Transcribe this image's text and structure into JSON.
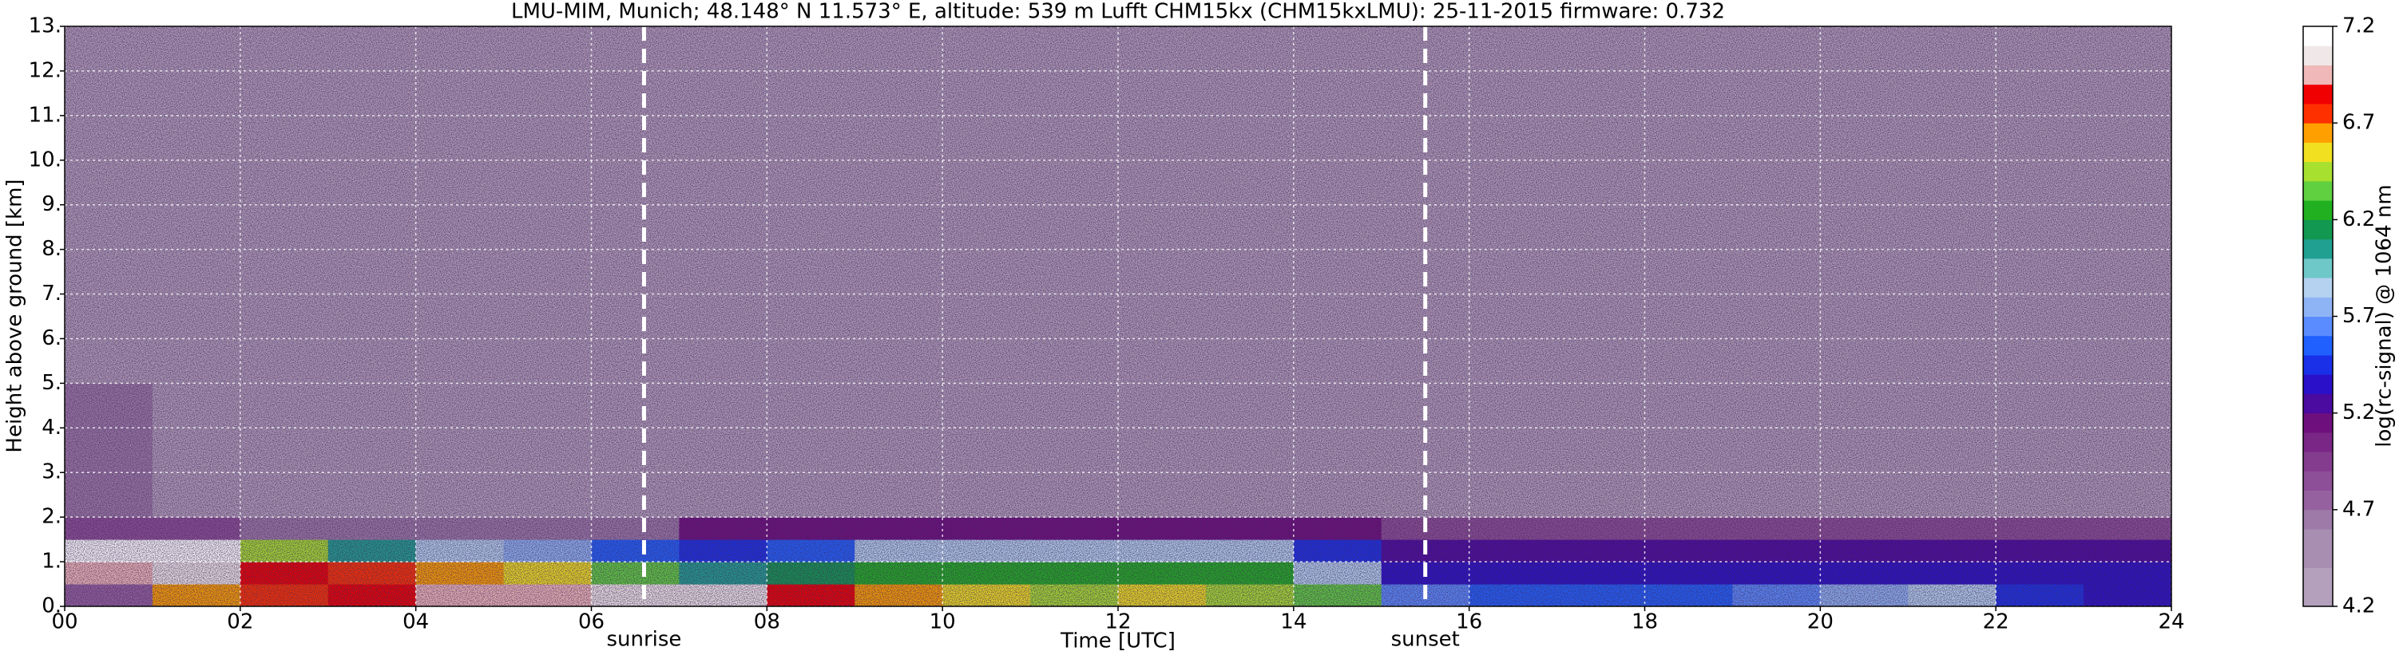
{
  "chart_data": {
    "type": "heatmap",
    "title": "LMU-MIM, Munich; 48.148° N 11.573° E, altitude: 539 m    Lufft CHM15kx (CHM15kxLMU): 25-11-2015    firmware: 0.732",
    "x_label": "Time [UTC]",
    "y_label": "Height above ground [km]",
    "colorbar_label": "log(rc-signal) @ 1064 nm",
    "x": [
      0,
      1,
      2,
      3,
      4,
      5,
      6,
      7,
      8,
      9,
      10,
      11,
      12,
      13,
      14,
      15,
      16,
      17,
      18,
      19,
      20,
      21,
      22,
      23,
      24
    ],
    "y_bins": [
      0,
      0.5,
      1,
      1.5,
      2,
      5,
      13
    ],
    "values": [
      [
        4.7,
        6.6,
        6.7,
        6.8,
        6.9,
        6.9,
        7.0,
        7.0,
        6.8,
        6.6,
        6.5,
        6.4,
        6.5,
        6.4,
        6.3,
        5.6,
        5.5,
        5.5,
        5.5,
        5.6,
        5.7,
        5.8,
        5.4,
        5.3
      ],
      [
        6.9,
        7.0,
        6.8,
        6.7,
        6.6,
        6.5,
        6.3,
        6.0,
        6.1,
        6.2,
        6.2,
        6.2,
        6.2,
        6.2,
        5.8,
        5.3,
        5.3,
        5.3,
        5.3,
        5.3,
        5.3,
        5.3,
        5.3,
        5.3
      ],
      [
        7.1,
        7.1,
        6.4,
        6.0,
        5.8,
        5.7,
        5.5,
        5.4,
        5.5,
        5.8,
        5.8,
        5.8,
        5.8,
        5.8,
        5.4,
        5.2,
        5.2,
        5.2,
        5.2,
        5.2,
        5.2,
        5.2,
        5.2,
        5.2
      ],
      [
        4.8,
        4.8,
        4.6,
        4.6,
        4.6,
        4.6,
        4.6,
        5.1,
        5.1,
        5.1,
        5.1,
        5.1,
        5.1,
        5.1,
        5.1,
        4.8,
        4.8,
        4.8,
        4.8,
        4.8,
        4.8,
        4.8,
        4.8,
        4.8
      ],
      [
        4.6,
        4.3,
        4.3,
        4.3,
        4.3,
        4.3,
        4.3,
        4.3,
        4.3,
        4.3,
        4.3,
        4.3,
        4.3,
        4.3,
        4.3,
        4.3,
        4.3,
        4.3,
        4.3,
        4.3,
        4.3,
        4.3,
        4.3,
        4.3
      ],
      [
        4.2,
        4.2,
        4.2,
        4.2,
        4.2,
        4.2,
        4.2,
        4.2,
        4.2,
        4.2,
        4.2,
        4.2,
        4.2,
        4.2,
        4.2,
        4.2,
        4.2,
        4.2,
        4.2,
        4.2,
        4.2,
        4.2,
        4.2,
        4.2
      ]
    ],
    "xlim": [
      0,
      24
    ],
    "ylim": [
      0,
      13
    ],
    "xticks": [
      {
        "value": 0,
        "label": "00"
      },
      {
        "value": 2,
        "label": "02"
      },
      {
        "value": 4,
        "label": "04"
      },
      {
        "value": 6,
        "label": "06"
      },
      {
        "value": 8,
        "label": "08"
      },
      10,
      12,
      14,
      16,
      18,
      20,
      22,
      24
    ],
    "yticks": [
      {
        "value": 0,
        "label": "0."
      },
      {
        "value": 1,
        "label": "1."
      },
      {
        "value": 2,
        "label": "2."
      },
      {
        "value": 3,
        "label": "3."
      },
      {
        "value": 4,
        "label": "4."
      },
      {
        "value": 5,
        "label": "5."
      },
      {
        "value": 6,
        "label": "6."
      },
      {
        "value": 7,
        "label": "7."
      },
      {
        "value": 8,
        "label": "8."
      },
      {
        "value": 9,
        "label": "9."
      },
      {
        "value": 10,
        "label": "10."
      },
      {
        "value": 11,
        "label": "11."
      },
      {
        "value": 12,
        "label": "12."
      },
      {
        "value": 13,
        "label": "13."
      }
    ],
    "clim": [
      4.2,
      7.2
    ],
    "cticks": [
      4.2,
      4.7,
      5.2,
      5.7,
      6.2,
      6.7,
      7.2
    ],
    "colors": [
      "#b4a0bc",
      "#b4a0bc",
      "#a88fb2",
      "#a88fb2",
      "#9d7aa8",
      "#95629f",
      "#8d4f97",
      "#843d8e",
      "#7a2686",
      "#6e0f7e",
      "#4b0aa0",
      "#2a10c8",
      "#1a30e8",
      "#2060ff",
      "#5a8cff",
      "#8fb4f5",
      "#b5d2f0",
      "#6fc8c8",
      "#20a090",
      "#129850",
      "#20b020",
      "#60d040",
      "#a8e030",
      "#f0e020",
      "#ffa000",
      "#ff3000",
      "#f00000",
      "#f0b8b8",
      "#f0e8e8",
      "#ffffff"
    ],
    "grid": true,
    "vlines": [
      {
        "x": 6.6,
        "label": "sunrise"
      },
      {
        "x": 15.5,
        "label": "sunset"
      }
    ]
  }
}
